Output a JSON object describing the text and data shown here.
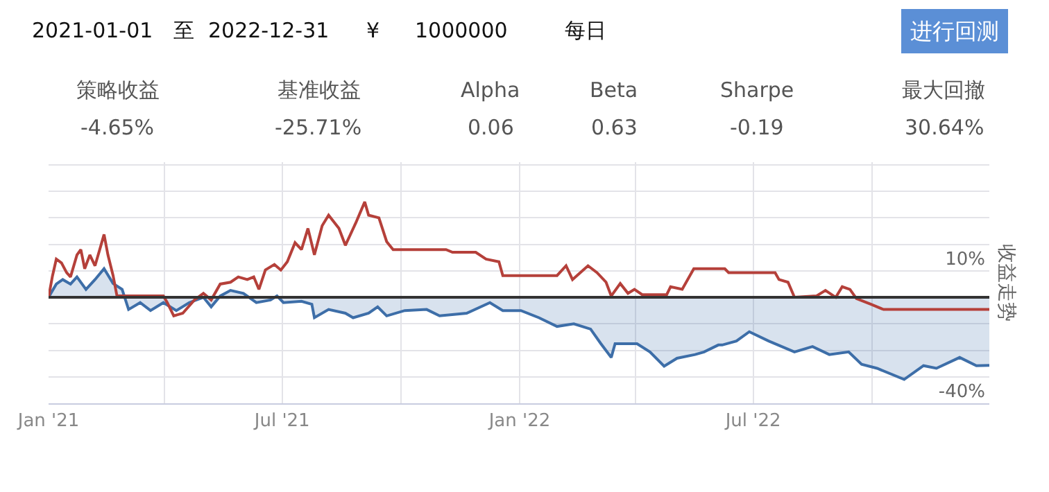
{
  "chart_data": {
    "type": "line",
    "ylabel": "收益走势",
    "annotations": [
      "2021-01-01",
      "至",
      "2022-12-31",
      "¥",
      "1000000",
      "每日",
      "进行回测",
      "策略收益",
      "-4.65%",
      "基准收益",
      "-25.71%",
      "Alpha",
      "0.06",
      "Beta",
      "0.63",
      "Sharpe",
      "-0.19",
      "最大回撤",
      "30.64%"
    ],
    "xlim": [
      "2021-01-01",
      "2022-12-31"
    ],
    "xticks": [
      {
        "value": "2021-01-01",
        "label": "Jan '21"
      },
      {
        "value": "2021-04-01",
        "label": null
      },
      {
        "value": "2021-07-01",
        "label": "Jul '21"
      },
      {
        "value": "2021-10-01",
        "label": null
      },
      {
        "value": "2022-01-01",
        "label": "Jan '22"
      },
      {
        "value": "2022-04-01",
        "label": null
      },
      {
        "value": "2022-07-01",
        "label": "Jul '22"
      },
      {
        "value": "2022-10-01",
        "label": null
      }
    ],
    "ylim": [
      -40,
      51
    ],
    "yticks": [
      {
        "value": -40,
        "label": "-40%"
      },
      {
        "value": -30,
        "label": null
      },
      {
        "value": -20,
        "label": null
      },
      {
        "value": -10,
        "label": null
      },
      {
        "value": 0,
        "label": null
      },
      {
        "value": 10,
        "label": "10%"
      },
      {
        "value": 20,
        "label": null
      },
      {
        "value": 30,
        "label": null
      },
      {
        "value": 40,
        "label": null
      },
      {
        "value": 50,
        "label": null
      }
    ],
    "grid": true,
    "ref_lines": [
      {
        "axis": "y",
        "value": 0,
        "color": "#333333"
      }
    ],
    "series": [
      {
        "type": "area",
        "color": "#3d6ea8",
        "x": [
          "2021-01-01",
          "2021-01-07",
          "2021-01-12",
          "2021-01-18",
          "2021-01-23",
          "2021-01-30",
          "2021-02-06",
          "2021-02-13",
          "2021-02-20",
          "2021-02-27",
          "2021-03-04",
          "2021-03-13",
          "2021-03-21",
          "2021-03-31",
          "2021-04-10",
          "2021-04-20",
          "2021-05-01",
          "2021-05-07",
          "2021-05-14",
          "2021-05-22",
          "2021-06-01",
          "2021-06-11",
          "2021-06-22",
          "2021-06-27",
          "2021-07-02",
          "2021-07-16",
          "2021-07-24",
          "2021-07-26",
          "2021-08-06",
          "2021-08-19",
          "2021-08-25",
          "2021-09-06",
          "2021-09-13",
          "2021-09-20",
          "2021-10-04",
          "2021-10-21",
          "2021-10-31",
          "2021-11-21",
          "2021-12-09",
          "2021-12-19",
          "2022-01-02",
          "2022-01-16",
          "2022-01-30",
          "2022-02-12",
          "2022-02-25",
          "2022-03-05",
          "2022-03-13",
          "2022-03-16",
          "2022-04-02",
          "2022-04-12",
          "2022-04-23",
          "2022-05-03",
          "2022-05-17",
          "2022-05-24",
          "2022-06-04",
          "2022-06-07",
          "2022-06-18",
          "2022-06-28",
          "2022-07-13",
          "2022-08-02",
          "2022-08-16",
          "2022-08-29",
          "2022-09-13",
          "2022-09-23",
          "2022-10-05",
          "2022-10-26",
          "2022-11-10",
          "2022-11-20",
          "2022-12-08",
          "2022-12-21",
          "2022-12-31"
        ],
        "values": [
          0,
          5,
          6.7,
          5,
          7.7,
          3,
          6.7,
          10.8,
          5.2,
          3,
          -4.6,
          -2,
          -5,
          -2,
          -5,
          -2,
          0,
          -3.6,
          0.5,
          2.6,
          1.5,
          -2,
          -1,
          0.5,
          -2,
          -1.5,
          -2.6,
          -7.7,
          -4.6,
          -6,
          -7.7,
          -6,
          -3.6,
          -7,
          -5,
          -4.6,
          -7,
          -6,
          -2,
          -5,
          -5,
          -7.7,
          -11,
          -10,
          -12,
          -17.5,
          -22.7,
          -17.5,
          -17.5,
          -20.6,
          -26,
          -23,
          -21.6,
          -20.6,
          -18,
          -18,
          -16.5,
          -13,
          -16.5,
          -20.6,
          -18.6,
          -21.6,
          -20.6,
          -25.3,
          -26.8,
          -31,
          -25.8,
          -26.8,
          -22.7,
          -25.8,
          -25.7
        ]
      },
      {
        "color": "#b5403a",
        "x": [
          "2021-01-01",
          "2021-01-04",
          "2021-01-07",
          "2021-01-11",
          "2021-01-15",
          "2021-01-18",
          "2021-01-23",
          "2021-01-26",
          "2021-01-29",
          "2021-02-02",
          "2021-02-06",
          "2021-02-10",
          "2021-02-13",
          "2021-02-16",
          "2021-02-20",
          "2021-02-23",
          "2021-03-31",
          "2021-04-03",
          "2021-04-08",
          "2021-04-15",
          "2021-04-24",
          "2021-05-01",
          "2021-05-07",
          "2021-05-14",
          "2021-05-22",
          "2021-05-28",
          "2021-06-04",
          "2021-06-09",
          "2021-06-13",
          "2021-06-18",
          "2021-06-25",
          "2021-06-30",
          "2021-07-05",
          "2021-07-11",
          "2021-07-16",
          "2021-07-21",
          "2021-07-26",
          "2021-08-01",
          "2021-08-06",
          "2021-08-14",
          "2021-08-19",
          "2021-08-27",
          "2021-09-03",
          "2021-09-06",
          "2021-09-14",
          "2021-09-20",
          "2021-09-25",
          "2021-11-05",
          "2021-11-10",
          "2021-11-28",
          "2021-12-06",
          "2021-12-16",
          "2021-12-19",
          "2022-01-30",
          "2022-02-06",
          "2022-02-11",
          "2022-02-17",
          "2022-02-23",
          "2022-03-02",
          "2022-03-09",
          "2022-03-13",
          "2022-03-20",
          "2022-03-26",
          "2022-03-31",
          "2022-04-06",
          "2022-04-25",
          "2022-04-28",
          "2022-05-07",
          "2022-05-16",
          "2022-06-04",
          "2022-06-09",
          "2022-06-12",
          "2022-07-18",
          "2022-07-21",
          "2022-07-28",
          "2022-08-02",
          "2022-08-19",
          "2022-08-26",
          "2022-09-03",
          "2022-09-08",
          "2022-09-14",
          "2022-09-19",
          "2022-09-30",
          "2022-10-10",
          "2022-12-31"
        ],
        "values": [
          0,
          8,
          14.4,
          13,
          9.3,
          7.7,
          16,
          18,
          10.8,
          16,
          11.9,
          18.6,
          23.7,
          16,
          8.2,
          0.5,
          0.5,
          -2,
          -7,
          -6,
          -1,
          1.5,
          -1,
          5,
          5.7,
          7.7,
          6.7,
          7.7,
          3,
          10.3,
          12.4,
          10.3,
          13.4,
          20.6,
          18,
          26,
          16,
          27,
          31,
          26,
          19.6,
          28,
          36,
          31,
          30,
          21,
          18,
          18,
          17,
          17,
          14.4,
          13.4,
          8.2,
          8.2,
          11.9,
          6.7,
          9.3,
          11.9,
          9.3,
          5.7,
          0.5,
          5.2,
          1.5,
          3,
          1,
          1,
          4,
          3,
          10.8,
          10.8,
          10.8,
          9.3,
          9.3,
          6.7,
          5.7,
          0,
          0.5,
          2.6,
          0,
          4,
          3,
          -0.5,
          -2.6,
          -4.6,
          -4.6
        ]
      }
    ]
  }
}
